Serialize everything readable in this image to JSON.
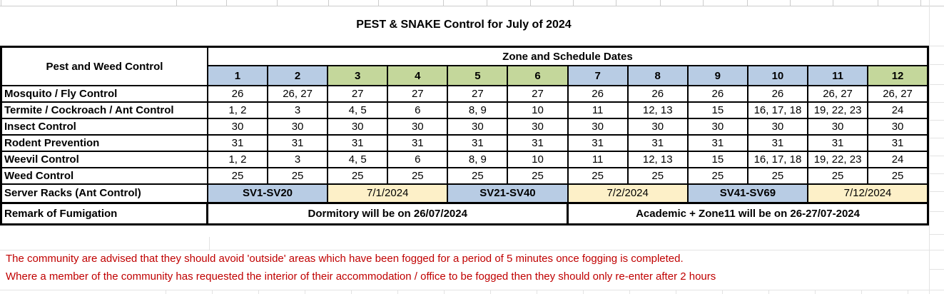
{
  "title": "PEST & SNAKE Control for July of 2024",
  "table": {
    "corner_header": "Pest and Weed Control",
    "zones_header": "Zone and Schedule Dates",
    "zones": [
      {
        "label": "1",
        "color": "blue"
      },
      {
        "label": "2",
        "color": "blue"
      },
      {
        "label": "3",
        "color": "green"
      },
      {
        "label": "4",
        "color": "green"
      },
      {
        "label": "5",
        "color": "green"
      },
      {
        "label": "6",
        "color": "green"
      },
      {
        "label": "7",
        "color": "blue"
      },
      {
        "label": "8",
        "color": "blue"
      },
      {
        "label": "9",
        "color": "blue"
      },
      {
        "label": "10",
        "color": "blue"
      },
      {
        "label": "11",
        "color": "blue"
      },
      {
        "label": "12",
        "color": "green"
      }
    ],
    "rows": [
      {
        "label": "Mosquito / Fly Control",
        "values": [
          "26",
          "26, 27",
          "27",
          "27",
          "27",
          "27",
          "26",
          "26",
          "26",
          "26",
          "26, 27",
          "26, 27"
        ]
      },
      {
        "label": "Termite / Cockroach / Ant Control",
        "values": [
          "1, 2",
          "3",
          "4, 5",
          "6",
          "8, 9",
          "10",
          "11",
          "12, 13",
          "15",
          "16, 17, 18",
          "19, 22, 23",
          "24"
        ]
      },
      {
        "label": "Insect Control",
        "values": [
          "30",
          "30",
          "30",
          "30",
          "30",
          "30",
          "30",
          "30",
          "30",
          "30",
          "30",
          "30"
        ]
      },
      {
        "label": "Rodent Prevention",
        "values": [
          "31",
          "31",
          "31",
          "31",
          "31",
          "31",
          "31",
          "31",
          "31",
          "31",
          "31",
          "31"
        ]
      },
      {
        "label": "Weevil Control",
        "values": [
          "1, 2",
          "3",
          "4, 5",
          "6",
          "8, 9",
          "10",
          "11",
          "12, 13",
          "15",
          "16, 17, 18",
          "19, 22, 23",
          "24"
        ]
      },
      {
        "label": "Weed Control",
        "values": [
          "25",
          "25",
          "25",
          "25",
          "25",
          "25",
          "25",
          "25",
          "25",
          "25",
          "25",
          "25"
        ]
      }
    ],
    "server_racks": {
      "label": "Server Racks (Ant Control)",
      "cells": [
        {
          "text": "SV1-SV20",
          "type": "racks"
        },
        {
          "text": "7/1/2024",
          "type": "date"
        },
        {
          "text": "SV21-SV40",
          "type": "racks"
        },
        {
          "text": "7/2/2024",
          "type": "date"
        },
        {
          "text": "SV41-SV69",
          "type": "racks"
        },
        {
          "text": "7/12/2024",
          "type": "date"
        }
      ]
    },
    "remark": {
      "label": "Remark of Fumigation",
      "left": "Dormitory will be on 26/07/2024",
      "right": "Academic + Zone11 will be on 26-27/07-2024"
    }
  },
  "notes": [
    "The community are advised that they should avoid 'outside' areas which have been fogged for a period of 5 minutes once fogging is completed.",
    "Where a member of the community has requested the interior of their accommodation / office to be fogged then they should only re-enter after 2 hours"
  ],
  "colors": {
    "zone_blue": "#B8CCE4",
    "zone_green": "#C4D79B",
    "date_cream": "#FDF0C8",
    "date_text": "#1F3864",
    "dormitory_green": "#67904C",
    "academic_blue": "#2E5CA6",
    "note_red": "#C00000"
  }
}
